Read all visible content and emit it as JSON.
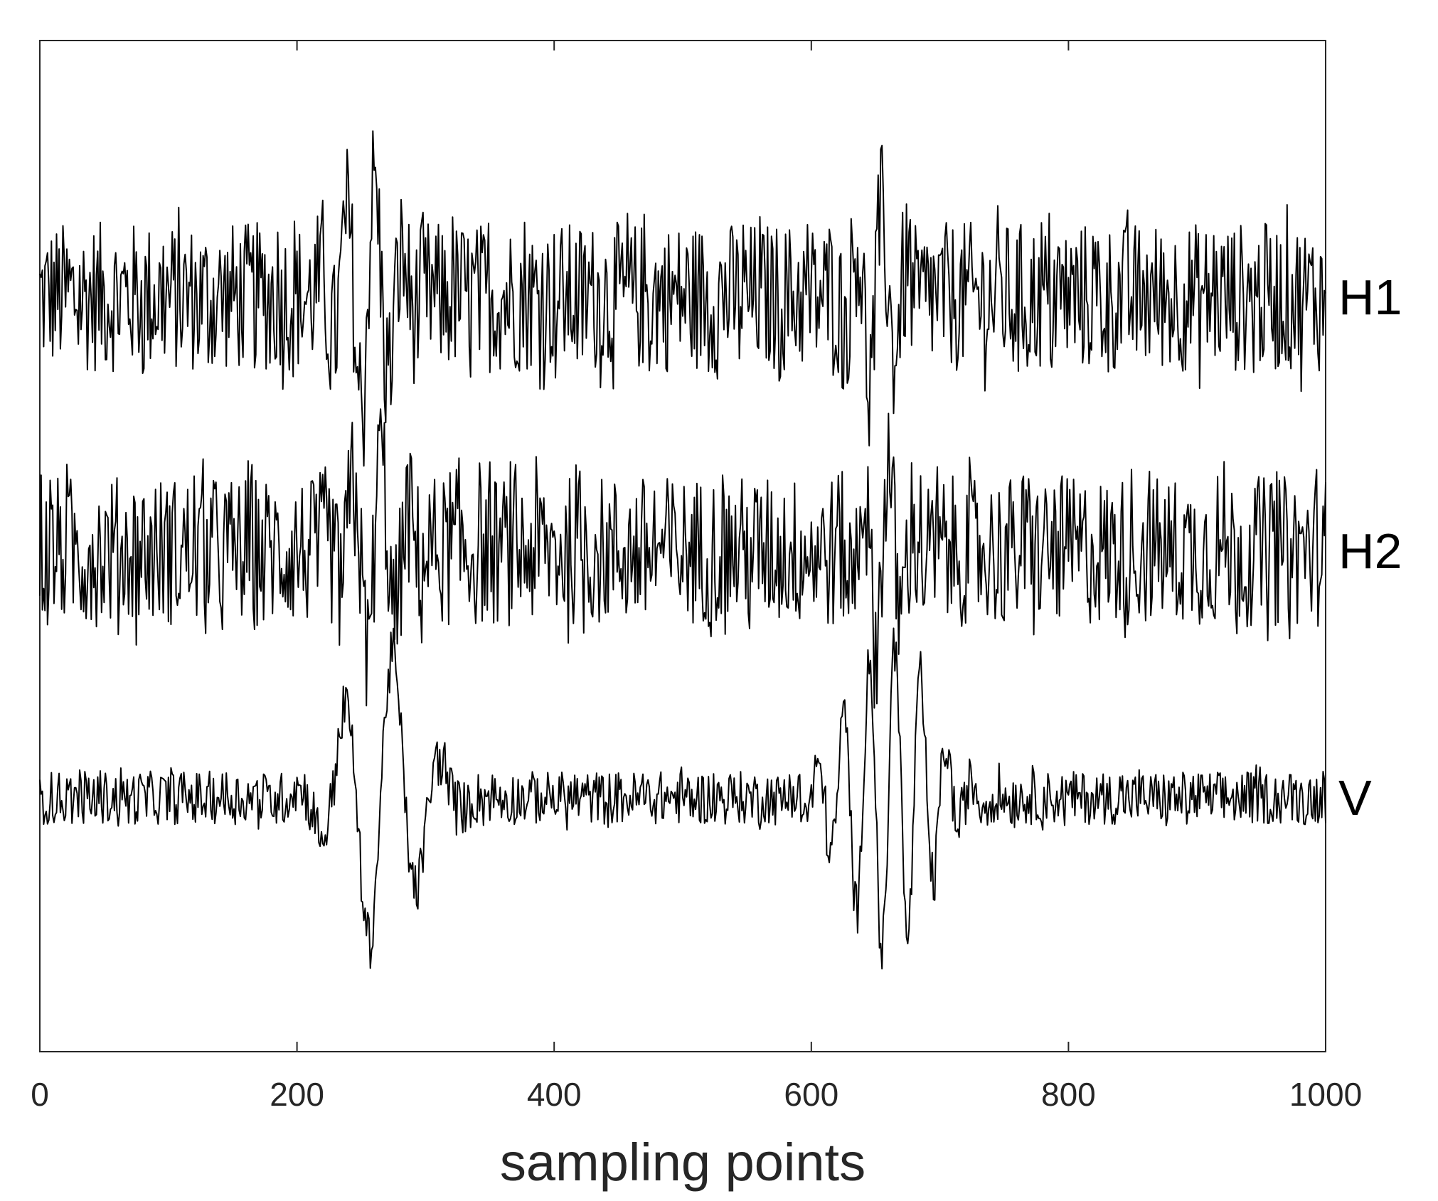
{
  "chart_data": {
    "type": "line",
    "xlabel": "sampling points",
    "ylabel": "",
    "xlim": [
      0,
      1000
    ],
    "xticks": [
      0,
      200,
      400,
      600,
      800,
      1000
    ],
    "xtick_labels": [
      "0",
      "200",
      "400",
      "600",
      "800",
      "1000"
    ],
    "yticks_shown": false,
    "grid": false,
    "line_color": "#000000",
    "series": [
      {
        "name": "H1",
        "baseline": 0,
        "noise_amplitude": 0.9,
        "events": [
          {
            "center": 255,
            "amplitude": 1.4,
            "cycles_width": 18,
            "period": 22
          },
          {
            "center": 650,
            "amplitude": 1.0,
            "cycles_width": 16,
            "period": 20
          }
        ]
      },
      {
        "name": "H2",
        "baseline": 0,
        "noise_amplitude": 0.9,
        "events": [
          {
            "center": 260,
            "amplitude": 1.2,
            "cycles_width": 18,
            "period": 22
          },
          {
            "center": 655,
            "amplitude": 1.1,
            "cycles_width": 16,
            "period": 20
          }
        ]
      },
      {
        "name": "V",
        "baseline": 0,
        "noise_amplitude": 0.5,
        "events": [
          {
            "center": 265,
            "amplitude": 2.8,
            "cycles_width": 28,
            "period": 38
          },
          {
            "center": 660,
            "amplitude": 3.0,
            "cycles_width": 30,
            "period": 20
          }
        ]
      }
    ]
  }
}
